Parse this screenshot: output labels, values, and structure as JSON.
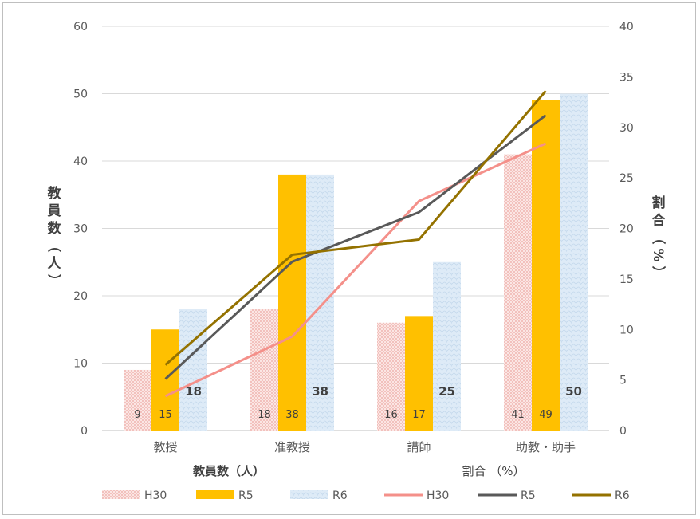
{
  "chart_data": {
    "type": "bar+line",
    "categories": [
      "教授",
      "准教授",
      "講師",
      "助教・助手"
    ],
    "bar_series": [
      {
        "name": "H30",
        "values": [
          9,
          18,
          16,
          41
        ],
        "color": "#f4c7c3",
        "pattern": "dots"
      },
      {
        "name": "R5",
        "values": [
          15,
          38,
          17,
          49
        ],
        "color": "#ffc000",
        "pattern": "solid"
      },
      {
        "name": "R6",
        "values": [
          18,
          38,
          25,
          50
        ],
        "color": "#dce9f6",
        "pattern": "texture"
      }
    ],
    "line_series": [
      {
        "name": "H30",
        "values": [
          3.4,
          9.3,
          22.7,
          28.4
        ],
        "color": "#f4908a"
      },
      {
        "name": "R5",
        "values": [
          5.1,
          16.7,
          21.6,
          31.2
        ],
        "color": "#595959"
      },
      {
        "name": "R6",
        "values": [
          6.5,
          17.4,
          18.9,
          33.6
        ],
        "color": "#947200"
      }
    ],
    "ylabel_left": "教員数（人）",
    "ylabel_right": "割合（%）",
    "ylim_left": [
      0,
      60
    ],
    "ylim_right": [
      0,
      40
    ],
    "yticks_left": [
      "0",
      "10",
      "20",
      "30",
      "40",
      "50",
      "60"
    ],
    "yticks_right": [
      "0",
      "5",
      "10",
      "15",
      "20",
      "25",
      "30",
      "35",
      "40"
    ],
    "xlabel_left": "教員数（人）",
    "xlabel_right": "割合 （%）",
    "grid": true,
    "legend_position": "bottom"
  }
}
